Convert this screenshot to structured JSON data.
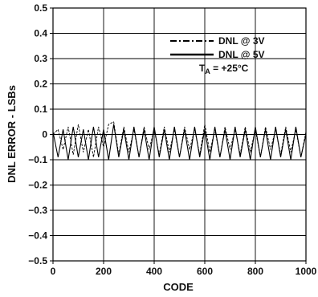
{
  "chart_data": {
    "type": "line",
    "xlabel": "CODE",
    "ylabel": "DNL ERROR - LSBs",
    "xlim": [
      0,
      1000
    ],
    "ylim": [
      -0.5,
      0.5
    ],
    "xticks": [
      "0",
      "200",
      "400",
      "600",
      "800",
      "1000"
    ],
    "yticks": [
      "0.5",
      "0.4",
      "0.3",
      "0.2",
      "0.1",
      "0",
      "−0.1",
      "−0.2",
      "−0.3",
      "−0.4",
      "−0.5"
    ],
    "grid": true,
    "legend_position": "top-right",
    "condition_prefix": "T",
    "condition_subscript": "A",
    "condition_value": " = +25°C",
    "series": [
      {
        "name": "DNL @ 3V",
        "style": "dash-dot",
        "color": "#000000",
        "x": [
          0,
          20,
          40,
          60,
          80,
          100,
          120,
          140,
          160,
          180,
          200,
          220,
          240,
          260,
          280,
          300,
          320,
          340,
          360,
          380,
          400,
          420,
          440,
          460,
          480,
          500,
          520,
          540,
          560,
          580,
          600,
          620,
          640,
          660,
          680,
          700,
          720,
          740,
          760,
          780,
          800,
          820,
          840,
          860,
          880,
          900,
          920,
          940,
          960,
          980,
          1000
        ],
        "y": [
          0.0,
          0.02,
          -0.06,
          0.03,
          -0.08,
          0.04,
          -0.07,
          0.02,
          -0.09,
          0.03,
          -0.05,
          0.04,
          0.05,
          -0.08,
          0.03,
          -0.07,
          0.02,
          -0.09,
          0.03,
          -0.06,
          0.02,
          -0.08,
          0.03,
          -0.07,
          0.02,
          -0.09,
          0.03,
          -0.06,
          0.02,
          -0.08,
          0.04,
          -0.07,
          0.02,
          -0.09,
          0.03,
          -0.06,
          0.02,
          -0.08,
          0.03,
          -0.07,
          0.02,
          -0.09,
          0.03,
          -0.06,
          0.02,
          -0.08,
          0.03,
          -0.07,
          0.02,
          -0.09,
          0.01
        ]
      },
      {
        "name": "DNL @ 5V",
        "style": "solid",
        "color": "#000000",
        "x": [
          0,
          20,
          40,
          60,
          80,
          100,
          120,
          140,
          160,
          180,
          200,
          220,
          240,
          260,
          280,
          300,
          320,
          340,
          360,
          380,
          400,
          420,
          440,
          460,
          480,
          500,
          520,
          540,
          560,
          580,
          600,
          620,
          640,
          660,
          680,
          700,
          720,
          740,
          760,
          780,
          800,
          820,
          840,
          860,
          880,
          900,
          920,
          940,
          960,
          980,
          1000
        ],
        "y": [
          0.01,
          -0.09,
          0.02,
          -0.1,
          0.03,
          -0.09,
          0.02,
          -0.1,
          0.03,
          -0.09,
          0.02,
          -0.1,
          0.04,
          -0.09,
          0.02,
          -0.1,
          0.03,
          -0.09,
          0.02,
          -0.1,
          0.03,
          -0.09,
          0.02,
          -0.1,
          0.03,
          -0.09,
          0.02,
          -0.1,
          0.03,
          -0.09,
          0.02,
          -0.1,
          0.03,
          -0.09,
          0.02,
          -0.1,
          0.03,
          -0.09,
          0.02,
          -0.1,
          0.03,
          -0.09,
          0.02,
          -0.1,
          0.03,
          -0.09,
          0.02,
          -0.1,
          0.03,
          -0.09,
          0.0
        ]
      }
    ]
  }
}
